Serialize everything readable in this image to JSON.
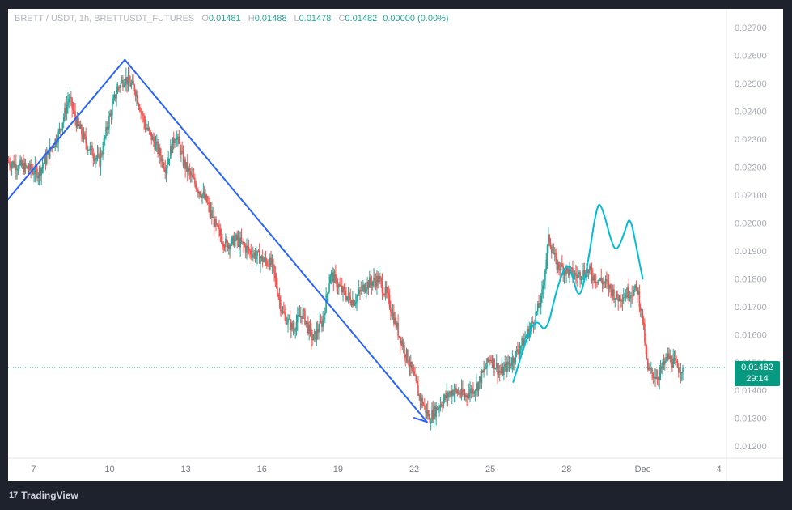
{
  "legend": {
    "symbol": "BRETT / USDT, 1h, BRETTUSDT_FUTURES",
    "open_label": "O",
    "open": "0.01481",
    "high_label": "H",
    "high": "0.01488",
    "low_label": "L",
    "low": "0.01478",
    "close_label": "C",
    "close": "0.01482",
    "change": "0.00000 (0.00%)"
  },
  "price_badge": {
    "price": "0.01482",
    "countdown": "29:14"
  },
  "brand": {
    "name": "TradingView",
    "logo_text": "17"
  },
  "colors": {
    "up": "#26a69a",
    "down": "#ef5350",
    "trendline": "#2962ff",
    "drawing": "#00bcd4",
    "last_price": "#089981"
  },
  "chart_data": {
    "type": "candlestick",
    "interval": "1h",
    "y_ticks": [
      "0.02700",
      "0.02600",
      "0.02500",
      "0.02400",
      "0.02300",
      "0.02200",
      "0.02100",
      "0.02000",
      "0.01900",
      "0.01800",
      "0.01700",
      "0.01600",
      "0.01500",
      "0.01400",
      "0.01300",
      "0.01200"
    ],
    "ylim": [
      0.01157,
      0.02767
    ],
    "x_ticks": [
      {
        "label": "7",
        "day": 7
      },
      {
        "label": "10",
        "day": 10
      },
      {
        "label": "13",
        "day": 13
      },
      {
        "label": "16",
        "day": 16
      },
      {
        "label": "19",
        "day": 19
      },
      {
        "label": "22",
        "day": 22
      },
      {
        "label": "25",
        "day": 25
      },
      {
        "label": "28",
        "day": 28
      },
      {
        "label": "Dec",
        "day": 31
      },
      {
        "label": "4",
        "day": 34
      }
    ],
    "xlim": [
      6.0,
      34.3
    ],
    "last_price": 0.01482,
    "price_path": [
      [
        6.0,
        0.0222
      ],
      [
        6.6,
        0.022
      ],
      [
        7.2,
        0.0218
      ],
      [
        7.6,
        0.0225
      ],
      [
        8.0,
        0.0232
      ],
      [
        8.4,
        0.0245
      ],
      [
        8.7,
        0.0236
      ],
      [
        9.1,
        0.0228
      ],
      [
        9.6,
        0.0222
      ],
      [
        10.0,
        0.0238
      ],
      [
        10.3,
        0.0248
      ],
      [
        10.6,
        0.0252
      ],
      [
        11.0,
        0.0248
      ],
      [
        11.4,
        0.0235
      ],
      [
        11.8,
        0.0228
      ],
      [
        12.2,
        0.022
      ],
      [
        12.6,
        0.0232
      ],
      [
        12.9,
        0.0222
      ],
      [
        13.3,
        0.0215
      ],
      [
        13.8,
        0.0208
      ],
      [
        14.2,
        0.0198
      ],
      [
        14.6,
        0.0192
      ],
      [
        15.0,
        0.0194
      ],
      [
        15.5,
        0.019
      ],
      [
        16.0,
        0.0187
      ],
      [
        16.4,
        0.0185
      ],
      [
        16.8,
        0.0168
      ],
      [
        17.2,
        0.0162
      ],
      [
        17.6,
        0.0168
      ],
      [
        18.0,
        0.0158
      ],
      [
        18.4,
        0.0165
      ],
      [
        18.7,
        0.0182
      ],
      [
        19.2,
        0.0175
      ],
      [
        19.6,
        0.0172
      ],
      [
        20.1,
        0.0178
      ],
      [
        20.6,
        0.018
      ],
      [
        21.0,
        0.0172
      ],
      [
        21.4,
        0.016
      ],
      [
        21.8,
        0.015
      ],
      [
        22.2,
        0.0138
      ],
      [
        22.6,
        0.013
      ],
      [
        23.0,
        0.0135
      ],
      [
        23.5,
        0.014
      ],
      [
        24.0,
        0.0138
      ],
      [
        24.5,
        0.0142
      ],
      [
        25.0,
        0.0152
      ],
      [
        25.4,
        0.0146
      ],
      [
        25.8,
        0.015
      ],
      [
        26.2,
        0.0156
      ],
      [
        26.6,
        0.0163
      ],
      [
        27.0,
        0.0172
      ],
      [
        27.3,
        0.0195
      ],
      [
        27.6,
        0.0185
      ],
      [
        28.0,
        0.0183
      ],
      [
        28.4,
        0.0181
      ],
      [
        28.8,
        0.0183
      ],
      [
        29.2,
        0.018
      ],
      [
        29.6,
        0.0178
      ],
      [
        30.0,
        0.0173
      ],
      [
        30.4,
        0.0175
      ],
      [
        30.8,
        0.0176
      ],
      [
        31.0,
        0.0165
      ],
      [
        31.2,
        0.0147
      ],
      [
        31.6,
        0.0145
      ],
      [
        32.0,
        0.0152
      ],
      [
        32.4,
        0.0148
      ],
      [
        32.6,
        0.01482
      ]
    ],
    "trendlines": [
      {
        "from": {
          "day": 6.0,
          "price": 0.02085
        },
        "to": {
          "day": 10.6,
          "price": 0.02585
        }
      },
      {
        "from": {
          "day": 10.6,
          "price": 0.02585
        },
        "to": {
          "day": 22.5,
          "price": 0.01287
        }
      },
      {
        "from": {
          "day": 22.0,
          "price": 0.01302
        },
        "to": {
          "day": 22.5,
          "price": 0.01287
        }
      }
    ],
    "projection_path": [
      [
        25.9,
        0.0143
      ],
      [
        26.4,
        0.0158
      ],
      [
        26.8,
        0.0166
      ],
      [
        27.2,
        0.016
      ],
      [
        27.6,
        0.0176
      ],
      [
        28.0,
        0.0186
      ],
      [
        28.2,
        0.0182
      ],
      [
        28.5,
        0.0172
      ],
      [
        28.8,
        0.0183
      ],
      [
        29.2,
        0.0207
      ],
      [
        29.4,
        0.0206
      ],
      [
        29.8,
        0.0192
      ],
      [
        30.0,
        0.019
      ],
      [
        30.3,
        0.0197
      ],
      [
        30.5,
        0.0203
      ],
      [
        30.8,
        0.0189
      ],
      [
        31.0,
        0.018
      ]
    ]
  }
}
